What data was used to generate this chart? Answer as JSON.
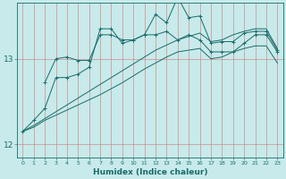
{
  "xlabel": "Humidex (Indice chaleur)",
  "bg_color": "#c8eaea",
  "line_color": "#1a6b6b",
  "xlim": [
    -0.5,
    23.5
  ],
  "ylim": [
    11.85,
    13.65
  ],
  "yticks": [
    12,
    13
  ],
  "xticks": [
    0,
    1,
    2,
    3,
    4,
    5,
    6,
    7,
    8,
    9,
    10,
    11,
    12,
    13,
    14,
    15,
    16,
    17,
    18,
    19,
    20,
    21,
    22,
    23
  ],
  "series": [
    {
      "x": [
        0,
        1,
        2,
        3,
        4,
        5,
        6,
        7,
        8,
        9,
        10,
        11,
        12,
        13,
        14,
        15,
        16,
        17,
        18,
        19,
        20,
        21,
        22,
        23
      ],
      "y": [
        12.15,
        12.28,
        12.42,
        12.78,
        12.78,
        12.82,
        12.9,
        13.35,
        13.35,
        13.18,
        13.22,
        13.28,
        13.52,
        13.42,
        13.72,
        13.48,
        13.5,
        13.18,
        13.2,
        13.2,
        13.3,
        13.32,
        13.32,
        13.1
      ],
      "marker": "+"
    },
    {
      "x": [
        2,
        3,
        4,
        5,
        6,
        7,
        8,
        9,
        10,
        11,
        12,
        13,
        14,
        15,
        16,
        17,
        18,
        19,
        20,
        21,
        22,
        23
      ],
      "y": [
        12.72,
        13.0,
        13.02,
        12.98,
        12.98,
        13.28,
        13.28,
        13.22,
        13.22,
        13.28,
        13.28,
        13.32,
        13.22,
        13.28,
        13.22,
        13.08,
        13.08,
        13.08,
        13.18,
        13.28,
        13.28,
        13.08
      ],
      "marker": "+"
    },
    {
      "x": [
        0,
        1,
        2,
        3,
        4,
        5,
        6,
        7,
        8,
        9,
        10,
        11,
        12,
        13,
        14,
        15,
        16,
        17,
        18,
        19,
        20,
        21,
        22,
        23
      ],
      "y": [
        12.15,
        12.22,
        12.3,
        12.38,
        12.46,
        12.54,
        12.62,
        12.7,
        12.78,
        12.86,
        12.94,
        13.02,
        13.1,
        13.16,
        13.22,
        13.26,
        13.3,
        13.2,
        13.22,
        13.28,
        13.32,
        13.35,
        13.35,
        13.12
      ],
      "marker": null
    },
    {
      "x": [
        0,
        1,
        2,
        3,
        4,
        5,
        6,
        7,
        8,
        9,
        10,
        11,
        12,
        13,
        14,
        15,
        16,
        17,
        18,
        19,
        20,
        21,
        22,
        23
      ],
      "y": [
        12.15,
        12.2,
        12.28,
        12.34,
        12.4,
        12.46,
        12.52,
        12.58,
        12.65,
        12.72,
        12.8,
        12.88,
        12.95,
        13.02,
        13.08,
        13.1,
        13.12,
        13.0,
        13.02,
        13.08,
        13.12,
        13.15,
        13.15,
        12.95
      ],
      "marker": null
    }
  ]
}
